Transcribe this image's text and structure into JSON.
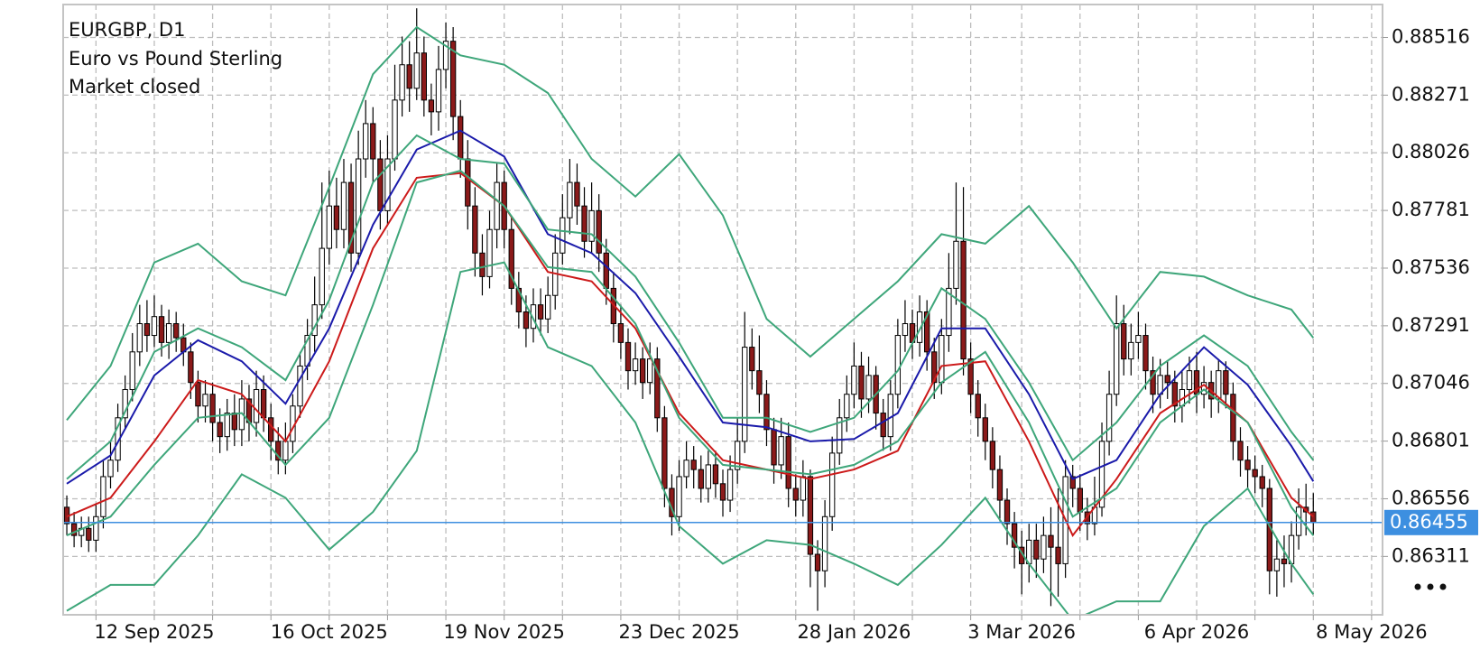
{
  "chart_data": {
    "type": "candlestick",
    "title": "EURGBP, D1",
    "subtitle": "Euro vs Pound Sterling",
    "status": "Market closed",
    "ylim": [
      0.86063,
      0.88656
    ],
    "yticks": [
      0.88516,
      0.88271,
      0.88026,
      0.87781,
      0.87536,
      0.87291,
      0.87046,
      0.86801,
      0.86556,
      0.86311
    ],
    "xlim": [
      -0.5,
      180.5
    ],
    "xticks": [
      {
        "value": 4,
        "label": null
      },
      {
        "value": 12,
        "label": "12 Sep 2025"
      },
      {
        "value": 20,
        "label": null
      },
      {
        "value": 28,
        "label": null
      },
      {
        "value": 36,
        "label": "16 Oct 2025"
      },
      {
        "value": 44,
        "label": null
      },
      {
        "value": 52,
        "label": null
      },
      {
        "value": 60,
        "label": "19 Nov 2025"
      },
      {
        "value": 68,
        "label": null
      },
      {
        "value": 76,
        "label": null
      },
      {
        "value": 84,
        "label": "23 Dec 2025"
      },
      {
        "value": 92,
        "label": null
      },
      {
        "value": 100,
        "label": null
      },
      {
        "value": 108,
        "label": "28 Jan 2026"
      },
      {
        "value": 116,
        "label": null
      },
      {
        "value": 124,
        "label": null
      },
      {
        "value": 131,
        "label": "3 Mar 2026"
      },
      {
        "value": 139,
        "label": null
      },
      {
        "value": 147,
        "label": null
      },
      {
        "value": 155,
        "label": "6 Apr 2026"
      },
      {
        "value": 163,
        "label": null
      },
      {
        "value": 171,
        "label": null
      },
      {
        "value": 179,
        "label": "8 May 2026"
      }
    ],
    "grid": true,
    "up_color": "#ffffff",
    "down_color": "#8b1a1a",
    "wick_color": "#000000",
    "current_price": 0.86455,
    "current_price_color": "#3d8fe0",
    "open": [
      0.8652,
      0.8645,
      0.864,
      0.8643,
      0.8638,
      0.8648,
      0.8665,
      0.8672,
      0.869,
      0.8702,
      0.8718,
      0.873,
      0.8725,
      0.8733,
      0.8722,
      0.873,
      0.8724,
      0.8718,
      0.8705,
      0.8695,
      0.87,
      0.8688,
      0.8682,
      0.8692,
      0.8685,
      0.8698,
      0.8688,
      0.8702,
      0.869,
      0.868,
      0.8672,
      0.868,
      0.8695,
      0.8712,
      0.8725,
      0.8738,
      0.8762,
      0.878,
      0.877,
      0.879,
      0.876,
      0.88,
      0.8815,
      0.88,
      0.8778,
      0.88,
      0.8825,
      0.884,
      0.883,
      0.8845,
      0.8825,
      0.882,
      0.8838,
      0.885,
      0.8818,
      0.88,
      0.878,
      0.876,
      0.875,
      0.877,
      0.879,
      0.877,
      0.8745,
      0.8735,
      0.8728,
      0.8738,
      0.8732,
      0.8742,
      0.876,
      0.8775,
      0.879,
      0.878,
      0.8765,
      0.8778,
      0.876,
      0.8745,
      0.873,
      0.8722,
      0.871,
      0.8715,
      0.8705,
      0.8715,
      0.869,
      0.866,
      0.8648,
      0.8665,
      0.8672,
      0.8668,
      0.866,
      0.867,
      0.8662,
      0.8655,
      0.8668,
      0.868,
      0.872,
      0.871,
      0.87,
      0.8685,
      0.867,
      0.8682,
      0.866,
      0.8655,
      0.8665,
      0.8632,
      0.8625,
      0.8648,
      0.8675,
      0.869,
      0.87,
      0.8712,
      0.8698,
      0.8708,
      0.8692,
      0.8682,
      0.87,
      0.8725,
      0.873,
      0.8722,
      0.8735,
      0.8718,
      0.8705,
      0.8725,
      0.8745,
      0.8765,
      0.8715,
      0.87,
      0.869,
      0.868,
      0.8668,
      0.8655,
      0.8645,
      0.8635,
      0.8628,
      0.8638,
      0.863,
      0.864,
      0.8635,
      0.8628,
      0.8665,
      0.866,
      0.865,
      0.8645,
      0.8652,
      0.868,
      0.87,
      0.873,
      0.8715,
      0.8722,
      0.8725,
      0.871,
      0.87,
      0.8708,
      0.8705,
      0.8695,
      0.8702,
      0.871,
      0.87,
      0.8705,
      0.8698,
      0.871,
      0.87,
      0.868,
      0.8672,
      0.8668,
      0.8665,
      0.866,
      0.8625,
      0.863,
      0.8628,
      0.864,
      0.8652,
      0.865
    ],
    "high": [
      0.8657,
      0.865,
      0.8648,
      0.8648,
      0.8653,
      0.8672,
      0.868,
      0.8696,
      0.8708,
      0.8726,
      0.8738,
      0.874,
      0.8742,
      0.8738,
      0.8736,
      0.8735,
      0.873,
      0.8722,
      0.871,
      0.8706,
      0.8705,
      0.8694,
      0.8698,
      0.87,
      0.8706,
      0.8704,
      0.871,
      0.8708,
      0.8696,
      0.8686,
      0.8688,
      0.87,
      0.8718,
      0.8732,
      0.875,
      0.879,
      0.8795,
      0.8792,
      0.88,
      0.8798,
      0.8812,
      0.8825,
      0.8822,
      0.8808,
      0.881,
      0.884,
      0.8852,
      0.885,
      0.8864,
      0.8852,
      0.8832,
      0.8848,
      0.8858,
      0.8856,
      0.8825,
      0.8808,
      0.8788,
      0.8768,
      0.8778,
      0.8798,
      0.8795,
      0.8776,
      0.8752,
      0.8742,
      0.8745,
      0.8745,
      0.875,
      0.8768,
      0.8785,
      0.88,
      0.8798,
      0.8788,
      0.879,
      0.8785,
      0.8766,
      0.8752,
      0.8738,
      0.8728,
      0.8722,
      0.872,
      0.8722,
      0.872,
      0.8695,
      0.8666,
      0.8672,
      0.868,
      0.8678,
      0.8674,
      0.8676,
      0.8676,
      0.8668,
      0.8674,
      0.869,
      0.8735,
      0.8728,
      0.8725,
      0.8706,
      0.869,
      0.869,
      0.8688,
      0.8666,
      0.8672,
      0.8668,
      0.8638,
      0.8655,
      0.8682,
      0.8698,
      0.8708,
      0.8722,
      0.8718,
      0.8716,
      0.8712,
      0.8698,
      0.8706,
      0.8732,
      0.874,
      0.8736,
      0.8742,
      0.874,
      0.8724,
      0.8732,
      0.876,
      0.879,
      0.8788,
      0.8722,
      0.8706,
      0.8696,
      0.8686,
      0.8674,
      0.866,
      0.865,
      0.8642,
      0.8645,
      0.8645,
      0.8648,
      0.8652,
      0.866,
      0.8672,
      0.867,
      0.8666,
      0.8656,
      0.8665,
      0.8688,
      0.871,
      0.8742,
      0.8738,
      0.873,
      0.8735,
      0.873,
      0.8716,
      0.8715,
      0.8714,
      0.871,
      0.871,
      0.8716,
      0.8718,
      0.8712,
      0.871,
      0.8715,
      0.8714,
      0.8705,
      0.8686,
      0.8678,
      0.8674,
      0.867,
      0.8664,
      0.8638,
      0.864,
      0.8646,
      0.866,
      0.8662,
      0.8658
    ],
    "low": [
      0.864,
      0.8635,
      0.8635,
      0.8633,
      0.8633,
      0.8643,
      0.866,
      0.8667,
      0.8685,
      0.8697,
      0.8712,
      0.8718,
      0.872,
      0.8716,
      0.8715,
      0.8718,
      0.8712,
      0.8698,
      0.8688,
      0.8688,
      0.868,
      0.8675,
      0.8676,
      0.8678,
      0.8678,
      0.868,
      0.8682,
      0.8684,
      0.8672,
      0.8666,
      0.8666,
      0.8675,
      0.869,
      0.8706,
      0.8718,
      0.8732,
      0.8755,
      0.8762,
      0.8762,
      0.8752,
      0.8755,
      0.8792,
      0.879,
      0.877,
      0.8772,
      0.8795,
      0.8818,
      0.882,
      0.8825,
      0.8818,
      0.881,
      0.8812,
      0.883,
      0.8808,
      0.8792,
      0.877,
      0.875,
      0.8742,
      0.8745,
      0.8762,
      0.8762,
      0.8738,
      0.8728,
      0.872,
      0.8722,
      0.8725,
      0.8726,
      0.8736,
      0.8755,
      0.8768,
      0.8772,
      0.8758,
      0.876,
      0.8752,
      0.8738,
      0.8722,
      0.8715,
      0.8702,
      0.8704,
      0.8698,
      0.87,
      0.8684,
      0.8652,
      0.864,
      0.8642,
      0.866,
      0.866,
      0.8654,
      0.8654,
      0.8656,
      0.8648,
      0.865,
      0.8662,
      0.8675,
      0.8702,
      0.8692,
      0.8678,
      0.8662,
      0.8664,
      0.8652,
      0.8648,
      0.8648,
      0.8618,
      0.8608,
      0.8618,
      0.8642,
      0.867,
      0.8684,
      0.8694,
      0.869,
      0.8692,
      0.8685,
      0.8676,
      0.8676,
      0.8694,
      0.8718,
      0.8715,
      0.8716,
      0.871,
      0.8698,
      0.87,
      0.8718,
      0.8738,
      0.8708,
      0.8692,
      0.8682,
      0.8672,
      0.866,
      0.8646,
      0.8636,
      0.8626,
      0.8615,
      0.862,
      0.8622,
      0.8624,
      0.861,
      0.8614,
      0.8622,
      0.8652,
      0.8642,
      0.8638,
      0.864,
      0.8648,
      0.8674,
      0.8695,
      0.8708,
      0.8708,
      0.8715,
      0.8702,
      0.8692,
      0.8694,
      0.8698,
      0.8688,
      0.8688,
      0.8696,
      0.8692,
      0.8694,
      0.869,
      0.8692,
      0.8694,
      0.8672,
      0.8665,
      0.866,
      0.8658,
      0.8652,
      0.8615,
      0.8614,
      0.8618,
      0.862,
      0.8634,
      0.864,
      0.864
    ],
    "close": [
      0.8645,
      0.864,
      0.8643,
      0.8638,
      0.8648,
      0.8665,
      0.8672,
      0.869,
      0.8702,
      0.8718,
      0.873,
      0.8725,
      0.8733,
      0.8722,
      0.873,
      0.8724,
      0.8718,
      0.8705,
      0.8695,
      0.87,
      0.8688,
      0.8682,
      0.8692,
      0.8685,
      0.8698,
      0.8688,
      0.8702,
      0.869,
      0.868,
      0.8672,
      0.868,
      0.8695,
      0.8712,
      0.8725,
      0.8738,
      0.8762,
      0.878,
      0.877,
      0.879,
      0.876,
      0.88,
      0.8815,
      0.88,
      0.8778,
      0.88,
      0.8825,
      0.884,
      0.883,
      0.8845,
      0.8825,
      0.882,
      0.8838,
      0.885,
      0.8818,
      0.88,
      0.878,
      0.876,
      0.875,
      0.877,
      0.879,
      0.877,
      0.8745,
      0.8735,
      0.8728,
      0.8738,
      0.8732,
      0.8742,
      0.876,
      0.8775,
      0.879,
      0.878,
      0.8765,
      0.8778,
      0.876,
      0.8745,
      0.873,
      0.8722,
      0.871,
      0.8715,
      0.8705,
      0.8715,
      0.869,
      0.866,
      0.8648,
      0.8665,
      0.8672,
      0.8668,
      0.866,
      0.867,
      0.8662,
      0.8655,
      0.8668,
      0.868,
      0.872,
      0.871,
      0.87,
      0.8685,
      0.867,
      0.8682,
      0.866,
      0.8655,
      0.8665,
      0.8632,
      0.8625,
      0.8648,
      0.8675,
      0.869,
      0.87,
      0.8712,
      0.8698,
      0.8708,
      0.8692,
      0.8682,
      0.87,
      0.8725,
      0.873,
      0.8722,
      0.8735,
      0.8718,
      0.8705,
      0.8725,
      0.8745,
      0.8765,
      0.8715,
      0.87,
      0.869,
      0.868,
      0.8668,
      0.8655,
      0.8645,
      0.8635,
      0.8628,
      0.8638,
      0.863,
      0.864,
      0.8635,
      0.8628,
      0.8665,
      0.866,
      0.865,
      0.8645,
      0.8652,
      0.868,
      0.87,
      0.873,
      0.8715,
      0.8722,
      0.8725,
      0.871,
      0.87,
      0.8708,
      0.8705,
      0.8695,
      0.8702,
      0.871,
      0.87,
      0.8705,
      0.8698,
      0.871,
      0.87,
      0.868,
      0.8672,
      0.8668,
      0.8665,
      0.866,
      0.8625,
      0.863,
      0.8628,
      0.864,
      0.8652,
      0.865,
      0.86455
    ],
    "series": [
      {
        "color": "#1a1aaa",
        "x": [
          0,
          6,
          12,
          18,
          24,
          30,
          36,
          42,
          48,
          54,
          60,
          66,
          72,
          78,
          84,
          90,
          96,
          102,
          108,
          114,
          120,
          126,
          132,
          138,
          144,
          150,
          156,
          162,
          168,
          171
        ],
        "values": [
          0.8662,
          0.8674,
          0.8708,
          0.8723,
          0.8714,
          0.8696,
          0.8728,
          0.8772,
          0.8804,
          0.8812,
          0.8801,
          0.8768,
          0.876,
          0.8743,
          0.8716,
          0.8688,
          0.8686,
          0.868,
          0.8681,
          0.8692,
          0.8728,
          0.8728,
          0.87,
          0.8664,
          0.8672,
          0.87,
          0.872,
          0.8704,
          0.8678,
          0.8663
        ]
      },
      {
        "color": "#cc1a1a",
        "x": [
          0,
          6,
          12,
          18,
          24,
          30,
          36,
          42,
          48,
          54,
          60,
          66,
          72,
          78,
          84,
          90,
          96,
          102,
          108,
          114,
          120,
          126,
          132,
          138,
          144,
          150,
          156,
          162,
          168,
          171
        ],
        "values": [
          0.8648,
          0.8656,
          0.868,
          0.8706,
          0.87,
          0.868,
          0.8714,
          0.8762,
          0.8792,
          0.8794,
          0.878,
          0.8752,
          0.8748,
          0.8728,
          0.8692,
          0.8672,
          0.8668,
          0.8664,
          0.8668,
          0.8676,
          0.8712,
          0.8714,
          0.868,
          0.864,
          0.8664,
          0.8692,
          0.8704,
          0.8688,
          0.8656,
          0.8648
        ]
      },
      {
        "color": "#3ea67a",
        "x": [
          0,
          6,
          12,
          18,
          24,
          30,
          36,
          42,
          48,
          54,
          60,
          66,
          72,
          78,
          84,
          90,
          96,
          102,
          108,
          114,
          120,
          126,
          132,
          138,
          144,
          150,
          156,
          162,
          168,
          171
        ],
        "values": [
          0.8689,
          0.8712,
          0.8756,
          0.8764,
          0.8748,
          0.8742,
          0.8788,
          0.8836,
          0.8856,
          0.8844,
          0.884,
          0.8828,
          0.88,
          0.8784,
          0.8802,
          0.8776,
          0.8732,
          0.8716,
          0.8732,
          0.8748,
          0.8768,
          0.8764,
          0.878,
          0.8756,
          0.8728,
          0.8752,
          0.875,
          0.8742,
          0.8736,
          0.8724
        ]
      },
      {
        "color": "#3ea67a",
        "x": [
          0,
          6,
          12,
          18,
          24,
          30,
          36,
          42,
          48,
          54,
          60,
          66,
          72,
          78,
          84,
          90,
          96,
          102,
          108,
          114,
          120,
          126,
          132,
          138,
          144,
          150,
          156,
          162,
          168,
          171
        ],
        "values": [
          0.8608,
          0.8619,
          0.8619,
          0.864,
          0.8666,
          0.8656,
          0.8634,
          0.865,
          0.8676,
          0.8752,
          0.8756,
          0.872,
          0.8712,
          0.8688,
          0.8644,
          0.8628,
          0.8638,
          0.8636,
          0.8628,
          0.8619,
          0.8636,
          0.8656,
          0.8628,
          0.8604,
          0.8612,
          0.8612,
          0.8644,
          0.866,
          0.8628,
          0.8615
        ]
      },
      {
        "color": "#3ea67a",
        "x": [
          0,
          6,
          12,
          18,
          24,
          30,
          36,
          42,
          48,
          54,
          60,
          66,
          72,
          78,
          84,
          90,
          96,
          102,
          108,
          114,
          120,
          126,
          132,
          138,
          144,
          150,
          156,
          162,
          168,
          171
        ],
        "values": [
          0.8664,
          0.868,
          0.8718,
          0.8728,
          0.872,
          0.8706,
          0.874,
          0.879,
          0.881,
          0.88,
          0.8798,
          0.877,
          0.8768,
          0.875,
          0.8722,
          0.869,
          0.869,
          0.8684,
          0.869,
          0.871,
          0.8745,
          0.8732,
          0.8705,
          0.8672,
          0.8688,
          0.8712,
          0.8725,
          0.8712,
          0.8684,
          0.8672
        ]
      },
      {
        "color": "#3ea67a",
        "x": [
          0,
          6,
          12,
          18,
          24,
          30,
          36,
          42,
          48,
          54,
          60,
          66,
          72,
          78,
          84,
          90,
          96,
          102,
          108,
          114,
          120,
          126,
          132,
          138,
          144,
          150,
          156,
          162,
          168,
          171
        ],
        "values": [
          0.864,
          0.8648,
          0.867,
          0.869,
          0.8692,
          0.867,
          0.869,
          0.8738,
          0.879,
          0.8795,
          0.878,
          0.8754,
          0.8752,
          0.873,
          0.869,
          0.867,
          0.8668,
          0.8666,
          0.867,
          0.868,
          0.8705,
          0.8718,
          0.8688,
          0.8648,
          0.866,
          0.8688,
          0.8702,
          0.8688,
          0.8652,
          0.864
        ]
      }
    ]
  }
}
